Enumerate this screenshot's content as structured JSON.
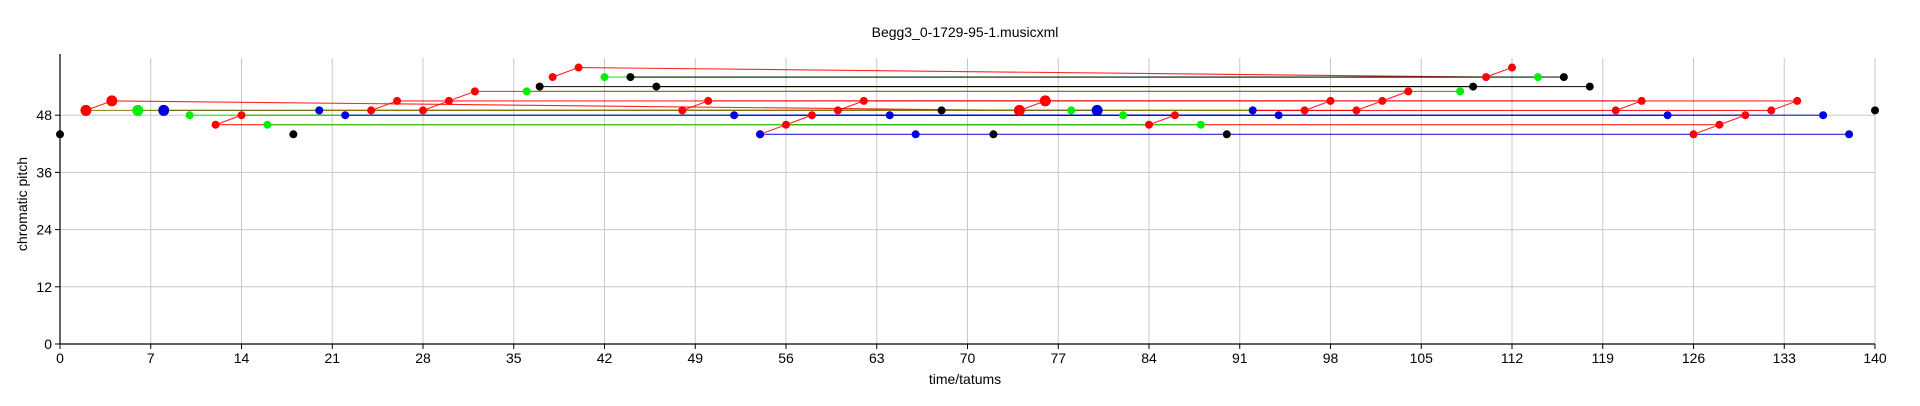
{
  "chart_data": {
    "type": "scatter",
    "title": "Begg3_0-1729-95-1.musicxml",
    "xlabel": "time/tatums",
    "ylabel": "chromatic pitch",
    "xlim": [
      0,
      140
    ],
    "ylim": [
      0,
      60
    ],
    "xticks": [
      0,
      7,
      14,
      21,
      28,
      35,
      42,
      49,
      56,
      63,
      70,
      77,
      84,
      91,
      98,
      105,
      112,
      119,
      126,
      133,
      140
    ],
    "yticks": [
      0,
      12,
      24,
      36,
      48
    ],
    "grid": true,
    "colors": {
      "red": "#ff0000",
      "green": "#00ee00",
      "blue": "#0000dd",
      "black": "#000000",
      "olive": "#8b7500"
    },
    "series": [
      {
        "color": "red",
        "points": [
          [
            2,
            49
          ],
          [
            4,
            51
          ],
          [
            12,
            46
          ],
          [
            14,
            48
          ],
          [
            24,
            49
          ],
          [
            26,
            51
          ],
          [
            28,
            49
          ],
          [
            30,
            51
          ],
          [
            32,
            53
          ],
          [
            38,
            56
          ],
          [
            40,
            58
          ],
          [
            48,
            49
          ],
          [
            50,
            51
          ],
          [
            54,
            44
          ],
          [
            56,
            46
          ],
          [
            58,
            48
          ],
          [
            60,
            49
          ],
          [
            62,
            51
          ],
          [
            74,
            49
          ],
          [
            76,
            51
          ],
          [
            84,
            46
          ],
          [
            86,
            48
          ],
          [
            96,
            49
          ],
          [
            98,
            51
          ],
          [
            100,
            49
          ],
          [
            102,
            51
          ],
          [
            104,
            53
          ],
          [
            110,
            56
          ],
          [
            112,
            58
          ],
          [
            120,
            49
          ],
          [
            122,
            51
          ],
          [
            126,
            44
          ],
          [
            128,
            46
          ],
          [
            130,
            48
          ],
          [
            132,
            49
          ],
          [
            134,
            51
          ]
        ],
        "big_points": [
          [
            2,
            49
          ],
          [
            4,
            51
          ],
          [
            74,
            49
          ],
          [
            76,
            51
          ]
        ],
        "links": [
          [
            2,
            49,
            4,
            51
          ],
          [
            12,
            46,
            14,
            48
          ],
          [
            24,
            49,
            26,
            51
          ],
          [
            28,
            49,
            30,
            51
          ],
          [
            30,
            51,
            32,
            53
          ],
          [
            38,
            56,
            40,
            58
          ],
          [
            48,
            49,
            50,
            51
          ],
          [
            54,
            44,
            56,
            46
          ],
          [
            56,
            46,
            58,
            48
          ],
          [
            60,
            49,
            62,
            51
          ],
          [
            74,
            49,
            76,
            51
          ],
          [
            84,
            46,
            86,
            48
          ],
          [
            96,
            49,
            98,
            51
          ],
          [
            100,
            49,
            102,
            51
          ],
          [
            102,
            51,
            104,
            53
          ],
          [
            110,
            56,
            112,
            58
          ],
          [
            120,
            49,
            122,
            51
          ],
          [
            126,
            44,
            128,
            46
          ],
          [
            128,
            46,
            130,
            48
          ],
          [
            132,
            49,
            134,
            51
          ],
          [
            4,
            51,
            74,
            49
          ],
          [
            14,
            48,
            86,
            48
          ],
          [
            26,
            51,
            98,
            51
          ],
          [
            32,
            53,
            104,
            53
          ],
          [
            40,
            58,
            110,
            56
          ],
          [
            50,
            51,
            122,
            51
          ],
          [
            58,
            48,
            130,
            48
          ],
          [
            62,
            51,
            134,
            51
          ],
          [
            28,
            49,
            100,
            49
          ],
          [
            12,
            46,
            84,
            46
          ],
          [
            56,
            46,
            128,
            46
          ],
          [
            60,
            49,
            132,
            49
          ],
          [
            24,
            49,
            96,
            49
          ]
        ]
      },
      {
        "color": "green",
        "points": [
          [
            6,
            49
          ],
          [
            10,
            48
          ],
          [
            16,
            46
          ],
          [
            20,
            49
          ],
          [
            36,
            53
          ],
          [
            42,
            56
          ],
          [
            78,
            49
          ],
          [
            82,
            48
          ],
          [
            88,
            46
          ],
          [
            92,
            49
          ],
          [
            108,
            53
          ],
          [
            114,
            56
          ]
        ],
        "big_points": [
          [
            6,
            49
          ]
        ],
        "links": [
          [
            6,
            49,
            78,
            49
          ],
          [
            10,
            48,
            82,
            48
          ],
          [
            16,
            46,
            88,
            46
          ],
          [
            20,
            49,
            92,
            49
          ],
          [
            36,
            53,
            108,
            53
          ],
          [
            42,
            56,
            114,
            56
          ]
        ]
      },
      {
        "color": "blue",
        "points": [
          [
            8,
            49
          ],
          [
            20,
            49
          ],
          [
            22,
            48
          ],
          [
            52,
            48
          ],
          [
            54,
            44
          ],
          [
            64,
            48
          ],
          [
            66,
            44
          ],
          [
            80,
            49
          ],
          [
            92,
            49
          ],
          [
            94,
            48
          ],
          [
            124,
            48
          ],
          [
            136,
            48
          ],
          [
            138,
            44
          ]
        ],
        "big_points": [
          [
            8,
            49
          ],
          [
            80,
            49
          ]
        ],
        "links": [
          [
            8,
            49,
            80,
            49
          ],
          [
            22,
            48,
            94,
            48
          ],
          [
            52,
            48,
            124,
            48
          ],
          [
            64,
            48,
            136,
            48
          ],
          [
            54,
            44,
            138,
            44
          ]
        ]
      },
      {
        "color": "black",
        "points": [
          [
            0,
            44
          ],
          [
            18,
            44
          ],
          [
            37,
            54
          ],
          [
            44,
            56
          ],
          [
            46,
            54
          ],
          [
            68,
            49
          ],
          [
            72,
            44
          ],
          [
            90,
            44
          ],
          [
            109,
            54
          ],
          [
            116,
            56
          ],
          [
            118,
            54
          ],
          [
            140,
            49
          ]
        ],
        "big_points": [],
        "links": [
          [
            37,
            54,
            109,
            54
          ],
          [
            44,
            56,
            116,
            56
          ],
          [
            46,
            54,
            118,
            54
          ]
        ]
      },
      {
        "color": "olive",
        "points": [],
        "big_points": [],
        "links": [
          [
            2,
            49,
            74,
            49
          ],
          [
            20,
            49,
            92,
            49
          ],
          [
            36,
            53,
            108,
            53
          ]
        ]
      }
    ]
  }
}
